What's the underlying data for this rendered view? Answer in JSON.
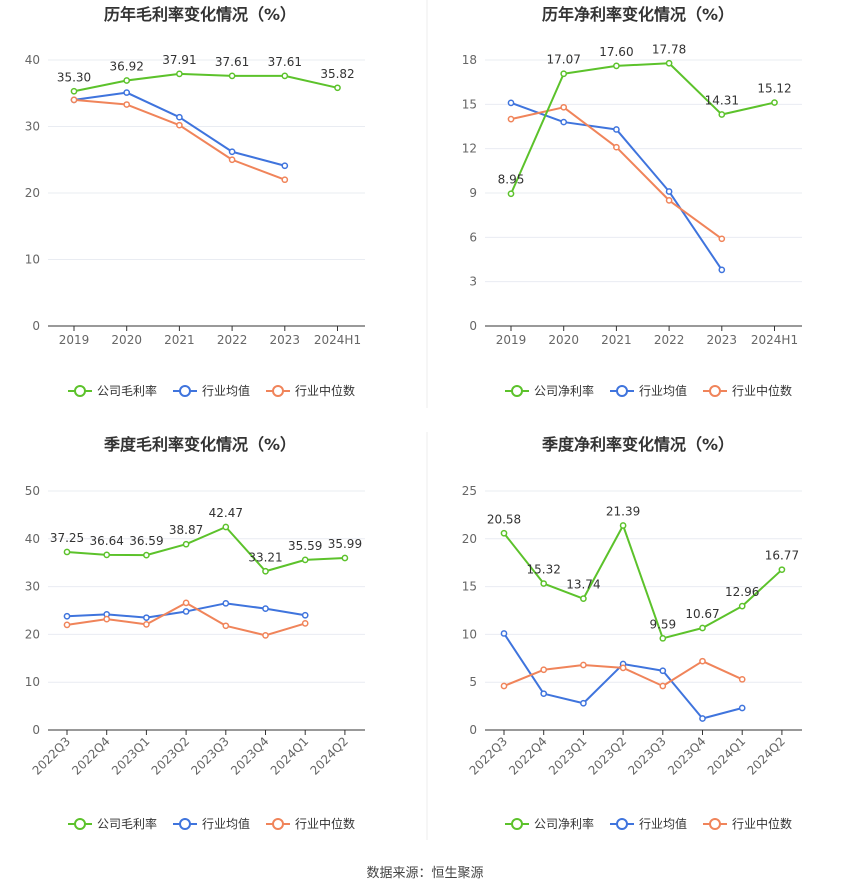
{
  "page": {
    "source_label": "数据来源：",
    "source_name": "恒生聚源"
  },
  "colors": {
    "company": "#5cc22b",
    "avg": "#3f74dd",
    "median": "#f0845a",
    "grid": "#e9ecf2",
    "axis": "#333333",
    "tick_text": "#666666"
  },
  "chart_data": [
    {
      "type": "line",
      "title": "历年毛利率变化情况（%）",
      "categories": [
        "2019",
        "2020",
        "2021",
        "2022",
        "2023",
        "2024H1"
      ],
      "ylim": [
        0,
        40
      ],
      "yticks": [
        0,
        10,
        20,
        30,
        40
      ],
      "rotate_x": false,
      "series": [
        {
          "name": "公司毛利率",
          "key": "company",
          "values": [
            35.3,
            36.92,
            37.91,
            37.61,
            37.61,
            35.82
          ],
          "labels": [
            "35.30",
            "36.92",
            "37.91",
            "37.61",
            "37.61",
            "35.82"
          ]
        },
        {
          "name": "行业均值",
          "key": "avg",
          "values": [
            34.0,
            35.1,
            31.4,
            26.2,
            24.1,
            null
          ]
        },
        {
          "name": "行业中位数",
          "key": "median",
          "values": [
            34.0,
            33.3,
            30.2,
            25.0,
            22.0,
            null
          ]
        }
      ]
    },
    {
      "type": "line",
      "title": "历年净利率变化情况（%）",
      "categories": [
        "2019",
        "2020",
        "2021",
        "2022",
        "2023",
        "2024H1"
      ],
      "ylim": [
        0,
        18
      ],
      "yticks": [
        0,
        3,
        6,
        9,
        12,
        15,
        18
      ],
      "rotate_x": false,
      "series": [
        {
          "name": "公司净利率",
          "key": "company",
          "values": [
            8.95,
            17.07,
            17.6,
            17.78,
            14.31,
            15.12
          ],
          "labels": [
            "8.95",
            "17.07",
            "17.60",
            "17.78",
            "14.31",
            "15.12"
          ]
        },
        {
          "name": "行业均值",
          "key": "avg",
          "values": [
            15.1,
            13.8,
            13.3,
            9.1,
            3.8,
            null
          ]
        },
        {
          "name": "行业中位数",
          "key": "median",
          "values": [
            14.0,
            14.8,
            12.1,
            8.5,
            5.9,
            null
          ]
        }
      ]
    },
    {
      "type": "line",
      "title": "季度毛利率变化情况（%）",
      "categories": [
        "2022Q3",
        "2022Q4",
        "2023Q1",
        "2023Q2",
        "2023Q3",
        "2023Q4",
        "2024Q1",
        "2024Q2"
      ],
      "ylim": [
        0,
        50
      ],
      "yticks": [
        0,
        10,
        20,
        30,
        40,
        50
      ],
      "rotate_x": true,
      "series": [
        {
          "name": "公司毛利率",
          "key": "company",
          "values": [
            37.25,
            36.64,
            36.59,
            38.87,
            42.47,
            33.21,
            35.59,
            35.99
          ],
          "labels": [
            "37.25",
            "36.64",
            "36.59",
            "38.87",
            "42.47",
            "33.21",
            "35.59",
            "35.99"
          ]
        },
        {
          "name": "行业均值",
          "key": "avg",
          "values": [
            23.8,
            24.2,
            23.5,
            24.8,
            26.5,
            25.4,
            24.0,
            null
          ]
        },
        {
          "name": "行业中位数",
          "key": "median",
          "values": [
            22.0,
            23.2,
            22.1,
            26.6,
            21.8,
            19.8,
            22.3,
            null
          ]
        }
      ]
    },
    {
      "type": "line",
      "title": "季度净利率变化情况（%）",
      "categories": [
        "2022Q3",
        "2022Q4",
        "2023Q1",
        "2023Q2",
        "2023Q3",
        "2023Q4",
        "2024Q1",
        "2024Q2"
      ],
      "ylim": [
        0,
        25
      ],
      "yticks": [
        0,
        5,
        10,
        15,
        20,
        25
      ],
      "rotate_x": true,
      "series": [
        {
          "name": "公司净利率",
          "key": "company",
          "values": [
            20.58,
            15.32,
            13.74,
            21.39,
            9.59,
            10.67,
            12.96,
            16.77
          ],
          "labels": [
            "20.58",
            "15.32",
            "13.74",
            "21.39",
            "9.59",
            "10.67",
            "12.96",
            "16.77"
          ]
        },
        {
          "name": "行业均值",
          "key": "avg",
          "values": [
            10.1,
            3.8,
            2.8,
            6.9,
            6.2,
            1.2,
            2.3,
            null
          ]
        },
        {
          "name": "行业中位数",
          "key": "median",
          "values": [
            4.6,
            6.3,
            6.8,
            6.5,
            4.6,
            7.2,
            5.3,
            null
          ]
        }
      ]
    }
  ]
}
